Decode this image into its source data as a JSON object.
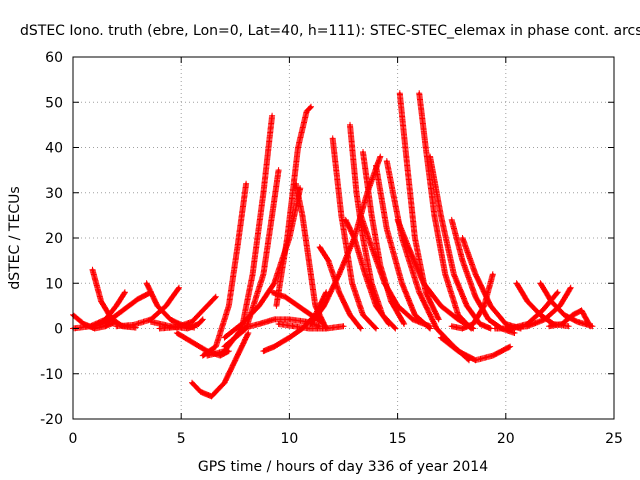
{
  "chart_data": {
    "type": "scatter",
    "title": "dSTEC Iono. truth (ebre, Lon=0, Lat=40, h=111): STEC-STEC_elemax in phase cont. arcs",
    "xlabel": "GPS time / hours of day 336 of year 2014",
    "ylabel": "dSTEC  / TECUs",
    "xlim": [
      0,
      25
    ],
    "ylim": [
      -20,
      60
    ],
    "x_ticks": [
      0,
      5,
      10,
      15,
      20,
      25
    ],
    "y_ticks": [
      -20,
      -10,
      0,
      10,
      20,
      30,
      40,
      50,
      60
    ],
    "x_tick_labels": [
      "0",
      "5",
      "10",
      "15",
      "20",
      "25"
    ],
    "y_tick_labels": [
      "-20",
      "-10",
      "0",
      "10",
      "20",
      "30",
      "40",
      "50",
      "60"
    ],
    "grid": true,
    "marker": "plus",
    "color": "#ff0000",
    "series": [
      {
        "x": [
          0.0,
          0.5,
          1.0,
          1.5,
          2.0
        ],
        "y": [
          3,
          1,
          0,
          0.5,
          1.5
        ]
      },
      {
        "x": [
          0.9,
          1.3,
          1.8,
          2.3,
          2.9
        ],
        "y": [
          13,
          6,
          2,
          0.5,
          0.2
        ]
      },
      {
        "x": [
          0.0,
          0.8,
          1.5,
          2.0,
          2.4
        ],
        "y": [
          0,
          0.5,
          2,
          5,
          8
        ]
      },
      {
        "x": [
          1.0,
          1.6,
          2.3,
          3.0,
          3.6
        ],
        "y": [
          0.5,
          1.5,
          4,
          6.5,
          8
        ]
      },
      {
        "x": [
          3.4,
          3.9,
          4.5,
          5.0,
          5.6
        ],
        "y": [
          10,
          5,
          2,
          0.8,
          0.2
        ]
      },
      {
        "x": [
          2.0,
          2.8,
          3.6,
          4.3,
          4.9
        ],
        "y": [
          0.5,
          0.8,
          2,
          5,
          9
        ]
      },
      {
        "x": [
          3.6,
          4.5,
          5.3,
          5.8,
          6.0
        ],
        "y": [
          1.5,
          0.5,
          0,
          1,
          2
        ]
      },
      {
        "x": [
          4.0,
          4.8,
          5.5,
          6.0,
          6.6
        ],
        "y": [
          0,
          0.3,
          1.5,
          4,
          7
        ]
      },
      {
        "x": [
          4.8,
          5.5,
          6.2,
          6.8,
          7.2
        ],
        "y": [
          -1,
          -3,
          -5,
          -6,
          -5
        ]
      },
      {
        "x": [
          5.5,
          5.9,
          6.4,
          7.0,
          7.6,
          8.1
        ],
        "y": [
          -12,
          -14,
          -15,
          -12,
          -6,
          -1
        ]
      },
      {
        "x": [
          6.0,
          6.6,
          7.2,
          7.6,
          8.0
        ],
        "y": [
          -6,
          -4,
          5,
          18,
          32
        ]
      },
      {
        "x": [
          6.2,
          7.0,
          7.8,
          8.3,
          8.8,
          9.2
        ],
        "y": [
          -6,
          -5,
          0,
          12,
          30,
          47
        ]
      },
      {
        "x": [
          7.0,
          8.0,
          8.8,
          9.2,
          9.5
        ],
        "y": [
          -4,
          0,
          12,
          25,
          35
        ]
      },
      {
        "x": [
          7.0,
          7.8,
          8.6,
          9.3,
          10.0,
          10.5
        ],
        "y": [
          -2,
          1,
          5,
          10,
          20,
          31
        ]
      },
      {
        "x": [
          8.8,
          9.3,
          10.0,
          10.6,
          11.2,
          11.7
        ],
        "y": [
          -5,
          -4,
          -2,
          0,
          3,
          8
        ]
      },
      {
        "x": [
          9.2,
          9.8,
          10.4,
          11.0,
          11.6
        ],
        "y": [
          8,
          7,
          5,
          3,
          1
        ]
      },
      {
        "x": [
          7.8,
          8.6,
          9.3,
          10.0,
          10.8,
          11.4
        ],
        "y": [
          0,
          1,
          2,
          2,
          1.5,
          0.5
        ]
      },
      {
        "x": [
          9.5,
          10.2,
          10.9,
          11.7,
          12.5
        ],
        "y": [
          1,
          0.5,
          0,
          0,
          0.5
        ]
      },
      {
        "x": [
          10.3,
          10.6,
          10.9,
          11.2,
          11.7
        ],
        "y": [
          32,
          25,
          15,
          5,
          0
        ]
      },
      {
        "x": [
          9.4,
          9.9,
          10.4,
          10.8,
          11.0
        ],
        "y": [
          5,
          20,
          40,
          48,
          49
        ]
      },
      {
        "x": [
          12.0,
          12.4,
          12.9,
          13.4,
          14.0
        ],
        "y": [
          42,
          25,
          10,
          3,
          0
        ]
      },
      {
        "x": [
          11.0,
          11.6,
          12.3,
          13.0,
          13.6,
          14.2
        ],
        "y": [
          1,
          5,
          12,
          20,
          30,
          38
        ]
      },
      {
        "x": [
          11.4,
          11.8,
          12.3,
          12.8,
          13.3
        ],
        "y": [
          18,
          15,
          8,
          3,
          0
        ]
      },
      {
        "x": [
          12.8,
          13.1,
          13.4,
          13.8,
          14.3,
          14.9
        ],
        "y": [
          45,
          30,
          20,
          10,
          3,
          0
        ]
      },
      {
        "x": [
          12.6,
          13.0,
          13.5,
          14.0,
          14.6
        ],
        "y": [
          24,
          20,
          12,
          5,
          1
        ]
      },
      {
        "x": [
          13.4,
          13.8,
          14.2,
          14.7,
          15.3
        ],
        "y": [
          39,
          25,
          14,
          6,
          1
        ]
      },
      {
        "x": [
          13.3,
          13.8,
          14.4,
          15.0,
          15.7,
          16.5
        ],
        "y": [
          25,
          18,
          10,
          5,
          2,
          0.5
        ]
      },
      {
        "x": [
          14.0,
          14.5,
          15.2,
          15.8,
          16.5
        ],
        "y": [
          36,
          22,
          10,
          3,
          0
        ]
      },
      {
        "x": [
          14.5,
          15.2,
          16.0,
          16.8,
          17.6,
          18.3
        ],
        "y": [
          37,
          20,
          8,
          0,
          -4,
          -7
        ]
      },
      {
        "x": [
          15.1,
          15.4,
          15.8,
          16.3,
          16.9
        ],
        "y": [
          52,
          38,
          20,
          8,
          2
        ]
      },
      {
        "x": [
          16.0,
          16.3,
          16.7,
          17.2,
          17.8,
          18.4
        ],
        "y": [
          52,
          40,
          25,
          12,
          3,
          0
        ]
      },
      {
        "x": [
          15.0,
          15.5,
          16.2,
          17.0,
          17.8,
          18.5
        ],
        "y": [
          24,
          18,
          10,
          5,
          2,
          0
        ]
      },
      {
        "x": [
          16.5,
          17.0,
          17.6,
          18.2,
          18.8,
          19.3
        ],
        "y": [
          38,
          25,
          12,
          5,
          1,
          0
        ]
      },
      {
        "x": [
          17.5,
          18.0,
          18.6,
          19.2,
          19.8,
          20.4
        ],
        "y": [
          24,
          15,
          7,
          2,
          0,
          -1
        ]
      },
      {
        "x": [
          18.0,
          18.6,
          19.3,
          20.0,
          20.7
        ],
        "y": [
          20,
          12,
          5,
          1,
          0
        ]
      },
      {
        "x": [
          17.0,
          17.8,
          18.6,
          19.4,
          20.2
        ],
        "y": [
          -2,
          -5,
          -7,
          -6,
          -4
        ]
      },
      {
        "x": [
          19.4,
          19.0,
          18.5,
          18.0,
          17.5
        ],
        "y": [
          12,
          5,
          1,
          0,
          0.5
        ]
      },
      {
        "x": [
          19.5,
          20.2,
          21.0,
          21.7,
          22.4
        ],
        "y": [
          0,
          0,
          1,
          4,
          8
        ]
      },
      {
        "x": [
          20.5,
          21.0,
          21.6,
          22.2,
          22.9
        ],
        "y": [
          10,
          6,
          3,
          1,
          0.5
        ]
      },
      {
        "x": [
          21.6,
          22.1,
          22.7,
          23.3,
          24.0
        ],
        "y": [
          10,
          6,
          3,
          1.5,
          0.5
        ]
      },
      {
        "x": [
          20.0,
          21.0,
          21.8,
          22.5,
          23.0
        ],
        "y": [
          0,
          0.5,
          2,
          5,
          9
        ]
      },
      {
        "x": [
          22.0,
          22.6,
          23.1,
          23.5,
          23.9
        ],
        "y": [
          0.5,
          1,
          3,
          4,
          0.5
        ]
      }
    ]
  }
}
